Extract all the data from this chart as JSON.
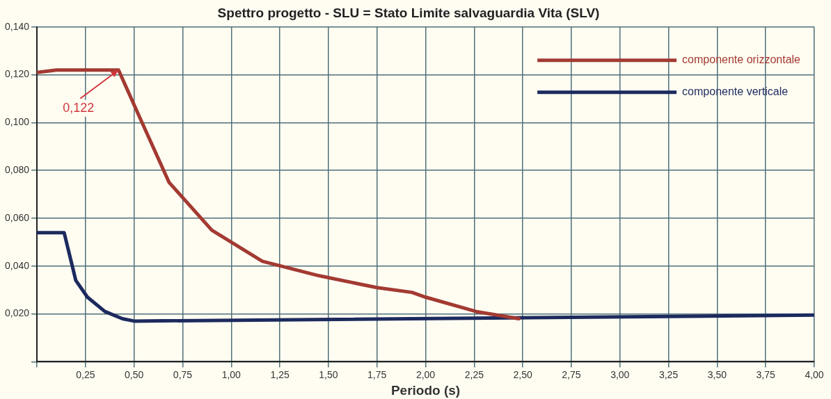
{
  "chart_data": {
    "type": "line",
    "title": "Spettro progetto - SLU = Stato Limite salvaguardia Vita (SLV)",
    "xlabel": "Periodo (s)",
    "xlim": [
      0,
      4
    ],
    "xticks": [
      {
        "value": 0,
        "label": null
      },
      {
        "value": 0.25,
        "label": "0,25"
      },
      {
        "value": 0.5,
        "label": "0,50"
      },
      {
        "value": 0.75,
        "label": "0,75"
      },
      {
        "value": 1,
        "label": "1,00"
      },
      {
        "value": 1.25,
        "label": "1,25"
      },
      {
        "value": 1.5,
        "label": "1,50"
      },
      {
        "value": 1.75,
        "label": "1,75"
      },
      {
        "value": 2,
        "label": "2,00"
      },
      {
        "value": 2.25,
        "label": "2,25"
      },
      {
        "value": 2.5,
        "label": "2,50"
      },
      {
        "value": 2.75,
        "label": "2,75"
      },
      {
        "value": 3,
        "label": "3,00"
      },
      {
        "value": 3.25,
        "label": "3,25"
      },
      {
        "value": 3.5,
        "label": "3,50"
      },
      {
        "value": 3.75,
        "label": "3,75"
      },
      {
        "value": 4,
        "label": "4,00"
      }
    ],
    "ylim": [
      0,
      0.14
    ],
    "yticks": [
      {
        "value": 0,
        "label": null
      },
      {
        "value": 0.02,
        "label": "0,020"
      },
      {
        "value": 0.04,
        "label": "0,040"
      },
      {
        "value": 0.06,
        "label": "0,060"
      },
      {
        "value": 0.08,
        "label": "0,080"
      },
      {
        "value": 0.1,
        "label": "0,100"
      },
      {
        "value": 0.12,
        "label": "0,120"
      },
      {
        "value": 0.14,
        "label": "0,140"
      }
    ],
    "grid": true,
    "legend": "top right",
    "marker": "none",
    "line_style": "solid",
    "annotations": [
      {
        "text": "0,122",
        "x": 0.42,
        "y": 0.122
      }
    ],
    "series": [
      {
        "name": "componente orizzontale",
        "color": "#a33a32",
        "x": [
          0,
          0.1,
          0.42,
          0.53,
          0.68,
          0.9,
          1.16,
          1.45,
          1.75,
          1.93,
          2.0,
          2.26,
          2.48
        ],
        "values": [
          0.121,
          0.122,
          0.122,
          0.102,
          0.075,
          0.055,
          0.042,
          0.036,
          0.031,
          0.029,
          0.027,
          0.021,
          0.018
        ]
      },
      {
        "name": "componente verticale",
        "color": "#1c2a5e",
        "x": [
          0,
          0.14,
          0.2,
          0.26,
          0.35,
          0.44,
          0.5,
          4
        ],
        "values": [
          0.054,
          0.054,
          0.034,
          0.027,
          0.021,
          0.018,
          0.017,
          0.0195
        ]
      }
    ]
  }
}
